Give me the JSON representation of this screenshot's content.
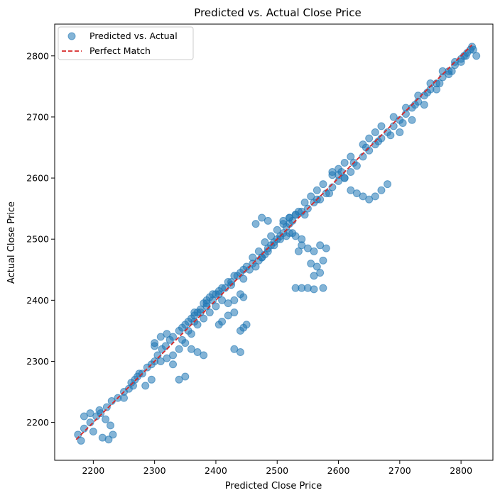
{
  "chart_data": {
    "type": "scatter",
    "title": "Predicted vs. Actual Close Price",
    "xlabel": "Predicted Close Price",
    "ylabel": "Actual Close Price",
    "xlim": [
      2137,
      2852
    ],
    "ylim": [
      2138,
      2852
    ],
    "xticks": [
      2200,
      2300,
      2400,
      2500,
      2600,
      2700,
      2800
    ],
    "yticks": [
      2200,
      2300,
      2400,
      2500,
      2600,
      2700,
      2800
    ],
    "grid": false,
    "legend_position": "top-left",
    "legend": [
      {
        "label": "Predicted vs. Actual",
        "marker": "circle"
      },
      {
        "label": "Perfect Match",
        "marker": "dashed-line"
      }
    ],
    "series": [
      {
        "name": "Predicted vs. Actual",
        "kind": "scatter",
        "color": "#1f77b4",
        "alpha": 0.55,
        "x": [
          2175,
          2185,
          2195,
          2205,
          2212,
          2220,
          2228,
          2185,
          2195,
          2210,
          2222,
          2230,
          2240,
          2250,
          2258,
          2262,
          2268,
          2272,
          2280,
          2288,
          2295,
          2300,
          2305,
          2312,
          2318,
          2300,
          2310,
          2320,
          2330,
          2340,
          2350,
          2355,
          2360,
          2365,
          2370,
          2375,
          2380,
          2385,
          2390,
          2400,
          2410,
          2420,
          2430,
          2440,
          2450,
          2460,
          2470,
          2475,
          2480,
          2485,
          2490,
          2495,
          2500,
          2505,
          2510,
          2515,
          2520,
          2525,
          2530,
          2540,
          2550,
          2560,
          2570,
          2580,
          2590,
          2600,
          2610,
          2620,
          2630,
          2640,
          2650,
          2660,
          2670,
          2680,
          2690,
          2700,
          2710,
          2720,
          2730,
          2740,
          2750,
          2760,
          2770,
          2780,
          2790,
          2800,
          2810,
          2820,
          2330,
          2340,
          2350,
          2360,
          2370,
          2380,
          2390,
          2400,
          2410,
          2300,
          2345,
          2355,
          2365,
          2375,
          2385,
          2395,
          2405,
          2415,
          2425,
          2435,
          2445,
          2460,
          2470,
          2480,
          2490,
          2500,
          2510,
          2520,
          2535,
          2545,
          2555,
          2565,
          2575,
          2590,
          2600,
          2610,
          2620,
          2640,
          2650,
          2660,
          2670,
          2690,
          2710,
          2730,
          2750,
          2770,
          2790,
          2808,
          2818,
          2420,
          2430,
          2440,
          2445,
          2405,
          2410,
          2420,
          2430,
          2440,
          2445,
          2450,
          2430,
          2440,
          2535,
          2540,
          2550,
          2560,
          2570,
          2580,
          2555,
          2565,
          2575,
          2530,
          2540,
          2550,
          2560,
          2575,
          2560,
          2570,
          2465,
          2475,
          2485,
          2520,
          2530,
          2540,
          2510,
          2520,
          2530,
          2340,
          2350,
          2310,
          2320,
          2330,
          2360,
          2370,
          2380,
          2620,
          2630,
          2640,
          2650,
          2660,
          2670,
          2680,
          2590,
          2600,
          2610,
          2700,
          2720,
          2740,
          2760,
          2780,
          2800,
          2815,
          2825,
          2180,
          2200,
          2215,
          2225,
          2232,
          2250,
          2265,
          2275,
          2285,
          2295,
          2325,
          2345,
          2365,
          2385,
          2395,
          2405,
          2425,
          2445,
          2455,
          2465,
          2475,
          2485,
          2495,
          2505,
          2515,
          2525,
          2545,
          2565,
          2585,
          2605,
          2625,
          2645,
          2665,
          2685,
          2705,
          2725,
          2745,
          2765,
          2785,
          2805
        ],
        "y": [
          2180,
          2190,
          2200,
          2210,
          2215,
          2205,
          2195,
          2210,
          2215,
          2220,
          2225,
          2235,
          2240,
          2250,
          2255,
          2265,
          2270,
          2275,
          2280,
          2290,
          2295,
          2300,
          2310,
          2320,
          2325,
          2330,
          2340,
          2345,
          2340,
          2350,
          2360,
          2365,
          2370,
          2375,
          2380,
          2385,
          2395,
          2400,
          2405,
          2410,
          2420,
          2430,
          2440,
          2445,
          2455,
          2460,
          2465,
          2470,
          2475,
          2480,
          2490,
          2495,
          2500,
          2505,
          2510,
          2520,
          2525,
          2530,
          2540,
          2545,
          2550,
          2560,
          2565,
          2575,
          2585,
          2595,
          2600,
          2610,
          2620,
          2635,
          2645,
          2655,
          2665,
          2675,
          2685,
          2695,
          2705,
          2715,
          2725,
          2735,
          2745,
          2755,
          2765,
          2775,
          2785,
          2795,
          2805,
          2810,
          2310,
          2320,
          2330,
          2345,
          2360,
          2370,
          2380,
          2390,
          2400,
          2325,
          2335,
          2350,
          2365,
          2380,
          2390,
          2400,
          2410,
          2420,
          2430,
          2440,
          2450,
          2470,
          2480,
          2495,
          2505,
          2515,
          2525,
          2535,
          2545,
          2560,
          2570,
          2580,
          2590,
          2605,
          2615,
          2625,
          2635,
          2655,
          2665,
          2675,
          2685,
          2700,
          2715,
          2735,
          2755,
          2775,
          2790,
          2800,
          2815,
          2395,
          2400,
          2410,
          2405,
          2360,
          2365,
          2375,
          2380,
          2350,
          2355,
          2360,
          2320,
          2315,
          2480,
          2490,
          2485,
          2480,
          2490,
          2485,
          2460,
          2455,
          2465,
          2420,
          2420,
          2420,
          2418,
          2420,
          2440,
          2445,
          2525,
          2535,
          2530,
          2510,
          2505,
          2500,
          2530,
          2535,
          2540,
          2270,
          2275,
          2300,
          2305,
          2295,
          2320,
          2315,
          2310,
          2580,
          2575,
          2570,
          2565,
          2570,
          2580,
          2590,
          2610,
          2605,
          2600,
          2675,
          2695,
          2720,
          2745,
          2770,
          2790,
          2810,
          2800,
          2170,
          2185,
          2175,
          2172,
          2180,
          2240,
          2260,
          2280,
          2260,
          2270,
          2335,
          2355,
          2380,
          2395,
          2410,
          2415,
          2425,
          2435,
          2450,
          2455,
          2470,
          2485,
          2490,
          2500,
          2505,
          2510,
          2540,
          2565,
          2575,
          2610,
          2625,
          2650,
          2660,
          2670,
          2690,
          2720,
          2740,
          2755,
          2775,
          2800
        ]
      },
      {
        "name": "Perfect Match",
        "kind": "line",
        "style": "dashed",
        "color": "#d62728",
        "x": [
          2172,
          2818
        ],
        "y": [
          2172,
          2818
        ]
      }
    ]
  }
}
